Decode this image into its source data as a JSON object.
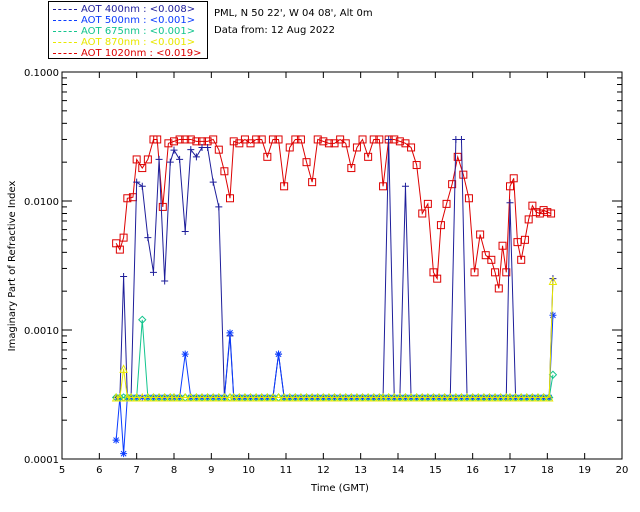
{
  "legend": [
    {
      "label": "AOT  400nm : <0.008>",
      "color": "#1e1e9a"
    },
    {
      "label": "AOT  500nm : <0.001>",
      "color": "#0a3cff"
    },
    {
      "label": "AOT  675nm : <0.001>",
      "color": "#13c58e"
    },
    {
      "label": "AOT  870nm : <0.001>",
      "color": "#e8e800"
    },
    {
      "label": "AOT 1020nm : <0.019>",
      "color": "#dd0000"
    }
  ],
  "info": {
    "site": "PML, N 50 22', W 04 08', Alt 0m",
    "date": "Data from: 12 Aug 2022"
  },
  "chart_data": {
    "type": "line",
    "title": "",
    "xlabel": "Time (GMT)",
    "ylabel": "Imaginary Part of Refractive Index",
    "xlim": [
      5,
      20
    ],
    "ylim": [
      0.0001,
      0.1
    ],
    "yscale": "log",
    "xticks": [
      5,
      6,
      7,
      8,
      9,
      10,
      11,
      12,
      13,
      14,
      15,
      16,
      17,
      18,
      19,
      20
    ],
    "yticks": [
      0.0001,
      0.001,
      0.01,
      0.1
    ],
    "ytick_labels": [
      "0.0001",
      "0.0010",
      "0.0100",
      "0.1000"
    ],
    "series": [
      {
        "name": "AOT 1020nm",
        "color": "#dd0000",
        "marker": "square",
        "x": [
          6.45,
          6.55,
          6.65,
          6.75,
          6.9,
          7.0,
          7.15,
          7.3,
          7.45,
          7.55,
          7.7,
          7.85,
          8.0,
          8.15,
          8.3,
          8.45,
          8.6,
          8.75,
          8.9,
          9.05,
          9.2,
          9.35,
          9.5,
          9.6,
          9.75,
          9.9,
          10.05,
          10.2,
          10.35,
          10.5,
          10.65,
          10.8,
          10.95,
          11.1,
          11.25,
          11.4,
          11.55,
          11.7,
          11.85,
          12.0,
          12.15,
          12.3,
          12.45,
          12.6,
          12.75,
          12.9,
          13.05,
          13.2,
          13.35,
          13.5,
          13.6,
          13.75,
          13.9,
          14.05,
          14.2,
          14.35,
          14.5,
          14.65,
          14.8,
          14.95,
          15.05,
          15.15,
          15.3,
          15.45,
          15.6,
          15.75,
          15.9,
          16.05,
          16.2,
          16.35,
          16.5,
          16.6,
          16.7,
          16.8,
          16.9,
          17.0,
          17.1,
          17.2,
          17.3,
          17.4,
          17.5,
          17.6,
          17.7,
          17.8,
          17.9,
          18.0,
          18.1
        ],
        "y": [
          0.0047,
          0.0042,
          0.0052,
          0.0105,
          0.0107,
          0.021,
          0.018,
          0.021,
          0.03,
          0.03,
          0.009,
          0.028,
          0.029,
          0.03,
          0.03,
          0.03,
          0.029,
          0.029,
          0.029,
          0.03,
          0.025,
          0.017,
          0.0105,
          0.029,
          0.028,
          0.03,
          0.028,
          0.03,
          0.03,
          0.022,
          0.03,
          0.03,
          0.013,
          0.026,
          0.03,
          0.03,
          0.02,
          0.014,
          0.03,
          0.029,
          0.028,
          0.028,
          0.03,
          0.028,
          0.018,
          0.026,
          0.03,
          0.022,
          0.03,
          0.03,
          0.013,
          0.03,
          0.03,
          0.029,
          0.028,
          0.026,
          0.019,
          0.008,
          0.0095,
          0.0028,
          0.0025,
          0.0065,
          0.0095,
          0.0135,
          0.022,
          0.016,
          0.0105,
          0.0028,
          0.0055,
          0.0038,
          0.0035,
          0.0028,
          0.0021,
          0.0045,
          0.0028,
          0.013,
          0.015,
          0.0048,
          0.0035,
          0.005,
          0.0072,
          0.0092,
          0.0082,
          0.008,
          0.0085,
          0.0082,
          0.008
        ]
      },
      {
        "name": "AOT  400nm",
        "color": "#1e1e9a",
        "marker": "plus",
        "x": [
          6.45,
          6.55,
          6.65,
          6.75,
          6.85,
          7.0,
          7.15,
          7.3,
          7.45,
          7.6,
          7.75,
          7.9,
          8.0,
          8.15,
          8.3,
          8.45,
          8.6,
          8.75,
          8.9,
          9.05,
          9.2,
          9.35,
          9.5,
          9.6,
          9.75,
          9.9,
          10.05,
          10.2,
          10.35,
          10.5,
          10.65,
          10.8,
          10.95,
          11.1,
          11.25,
          11.4,
          11.55,
          11.7,
          11.85,
          12.0,
          12.15,
          12.3,
          12.45,
          12.6,
          12.75,
          12.9,
          13.05,
          13.2,
          13.35,
          13.5,
          13.6,
          13.75,
          13.9,
          14.05,
          14.2,
          14.35,
          14.5,
          14.65,
          14.8,
          14.95,
          15.1,
          15.25,
          15.4,
          15.55,
          15.7,
          15.85,
          16.0,
          16.15,
          16.3,
          16.45,
          16.6,
          16.75,
          16.9,
          17.0,
          17.15,
          17.3,
          17.45,
          17.6,
          17.75,
          17.9,
          18.05,
          18.15
        ],
        "y": [
          0.0003,
          0.0003,
          0.0026,
          0.0003,
          0.0003,
          0.014,
          0.013,
          0.0052,
          0.0028,
          0.021,
          0.0024,
          0.02,
          0.0248,
          0.021,
          0.0058,
          0.025,
          0.022,
          0.026,
          0.026,
          0.014,
          0.009,
          0.0003,
          0.0009,
          0.0003,
          0.0003,
          0.0003,
          0.0003,
          0.0003,
          0.0003,
          0.0003,
          0.0003,
          0.00065,
          0.0003,
          0.0003,
          0.0003,
          0.0003,
          0.0003,
          0.0003,
          0.0003,
          0.0003,
          0.0003,
          0.0003,
          0.0003,
          0.0003,
          0.0003,
          0.0003,
          0.0003,
          0.0003,
          0.0003,
          0.0003,
          0.0003,
          0.03,
          0.0003,
          0.0003,
          0.013,
          0.0003,
          0.0003,
          0.0003,
          0.0003,
          0.0003,
          0.0003,
          0.0003,
          0.0003,
          0.03,
          0.03,
          0.0003,
          0.0003,
          0.0003,
          0.0003,
          0.0003,
          0.0003,
          0.0003,
          0.0003,
          0.0097,
          0.0003,
          0.0003,
          0.0003,
          0.0003,
          0.0003,
          0.0003,
          0.0003,
          0.0025
        ]
      },
      {
        "name": "AOT  500nm",
        "color": "#0a3cff",
        "marker": "asterisk",
        "x": [
          6.45,
          6.55,
          6.65,
          6.75,
          6.85,
          7.0,
          7.15,
          7.3,
          7.45,
          7.6,
          7.75,
          7.9,
          8.0,
          8.15,
          8.3,
          8.45,
          8.6,
          8.75,
          8.9,
          9.05,
          9.2,
          9.35,
          9.5,
          9.6,
          9.75,
          9.9,
          10.05,
          10.2,
          10.35,
          10.5,
          10.65,
          10.8,
          10.95,
          11.1,
          11.25,
          11.4,
          11.55,
          11.7,
          11.85,
          12.0,
          12.15,
          12.3,
          12.45,
          12.6,
          12.75,
          12.9,
          13.05,
          13.2,
          13.35,
          13.5,
          13.6,
          13.75,
          13.9,
          14.05,
          14.2,
          14.35,
          14.5,
          14.65,
          14.8,
          14.95,
          15.1,
          15.25,
          15.4,
          15.55,
          15.7,
          15.85,
          16.0,
          16.15,
          16.3,
          16.45,
          16.6,
          16.75,
          16.9,
          17.0,
          17.15,
          17.3,
          17.45,
          17.6,
          17.75,
          17.9,
          18.05,
          18.15
        ],
        "y": [
          0.00014,
          0.0003,
          0.00011,
          0.0003,
          0.0003,
          0.0003,
          0.0003,
          0.0003,
          0.0003,
          0.0003,
          0.0003,
          0.0003,
          0.0003,
          0.0003,
          0.00065,
          0.0003,
          0.0003,
          0.0003,
          0.0003,
          0.0003,
          0.0003,
          0.0003,
          0.00095,
          0.0003,
          0.0003,
          0.0003,
          0.0003,
          0.0003,
          0.0003,
          0.0003,
          0.0003,
          0.00065,
          0.0003,
          0.0003,
          0.0003,
          0.0003,
          0.0003,
          0.0003,
          0.0003,
          0.0003,
          0.0003,
          0.0003,
          0.0003,
          0.0003,
          0.0003,
          0.0003,
          0.0003,
          0.0003,
          0.0003,
          0.0003,
          0.0003,
          0.0003,
          0.0003,
          0.0003,
          0.0003,
          0.0003,
          0.0003,
          0.0003,
          0.0003,
          0.0003,
          0.0003,
          0.0003,
          0.0003,
          0.0003,
          0.0003,
          0.0003,
          0.0003,
          0.0003,
          0.0003,
          0.0003,
          0.0003,
          0.0003,
          0.0003,
          0.0003,
          0.0003,
          0.0003,
          0.0003,
          0.0003,
          0.0003,
          0.0003,
          0.0003,
          0.0013
        ]
      },
      {
        "name": "AOT  675nm",
        "color": "#13c58e",
        "marker": "diamond",
        "x": [
          6.45,
          6.55,
          6.65,
          6.75,
          6.85,
          7.0,
          7.15,
          7.3,
          7.45,
          7.6,
          7.75,
          7.9,
          8.0,
          8.15,
          8.3,
          8.45,
          8.6,
          8.75,
          8.9,
          9.05,
          9.2,
          9.35,
          9.5,
          9.6,
          9.75,
          9.9,
          10.05,
          10.2,
          10.35,
          10.5,
          10.65,
          10.8,
          10.95,
          11.1,
          11.25,
          11.4,
          11.55,
          11.7,
          11.85,
          12.0,
          12.15,
          12.3,
          12.45,
          12.6,
          12.75,
          12.9,
          13.05,
          13.2,
          13.35,
          13.5,
          13.6,
          13.75,
          13.9,
          14.05,
          14.2,
          14.35,
          14.5,
          14.65,
          14.8,
          14.95,
          15.1,
          15.25,
          15.4,
          15.55,
          15.7,
          15.85,
          16.0,
          16.15,
          16.3,
          16.45,
          16.6,
          16.75,
          16.9,
          17.0,
          17.15,
          17.3,
          17.45,
          17.6,
          17.75,
          17.9,
          18.05,
          18.15
        ],
        "y": [
          0.0003,
          0.0003,
          0.0003,
          0.0003,
          0.0003,
          0.0003,
          0.0012,
          0.0003,
          0.0003,
          0.0003,
          0.0003,
          0.0003,
          0.0003,
          0.0003,
          0.0003,
          0.0003,
          0.0003,
          0.0003,
          0.0003,
          0.0003,
          0.0003,
          0.0003,
          0.0003,
          0.0003,
          0.0003,
          0.0003,
          0.0003,
          0.0003,
          0.0003,
          0.0003,
          0.0003,
          0.0003,
          0.0003,
          0.0003,
          0.0003,
          0.0003,
          0.0003,
          0.0003,
          0.0003,
          0.0003,
          0.0003,
          0.0003,
          0.0003,
          0.0003,
          0.0003,
          0.0003,
          0.0003,
          0.0003,
          0.0003,
          0.0003,
          0.0003,
          0.0003,
          0.0003,
          0.0003,
          0.0003,
          0.0003,
          0.0003,
          0.0003,
          0.0003,
          0.0003,
          0.0003,
          0.0003,
          0.0003,
          0.0003,
          0.0003,
          0.0003,
          0.0003,
          0.0003,
          0.0003,
          0.0003,
          0.0003,
          0.0003,
          0.0003,
          0.0003,
          0.0003,
          0.0003,
          0.0003,
          0.0003,
          0.0003,
          0.0003,
          0.0003,
          0.00045
        ]
      },
      {
        "name": "AOT  870nm",
        "color": "#e8e800",
        "marker": "triangle",
        "x": [
          6.45,
          6.55,
          6.65,
          6.75,
          6.85,
          7.0,
          7.15,
          7.3,
          7.45,
          7.6,
          7.75,
          7.9,
          8.0,
          8.15,
          8.3,
          8.45,
          8.6,
          8.75,
          8.9,
          9.05,
          9.2,
          9.35,
          9.5,
          9.6,
          9.75,
          9.9,
          10.05,
          10.2,
          10.35,
          10.5,
          10.65,
          10.8,
          10.95,
          11.1,
          11.25,
          11.4,
          11.55,
          11.7,
          11.85,
          12.0,
          12.15,
          12.3,
          12.45,
          12.6,
          12.75,
          12.9,
          13.05,
          13.2,
          13.35,
          13.5,
          13.6,
          13.75,
          13.9,
          14.05,
          14.2,
          14.35,
          14.5,
          14.65,
          14.8,
          14.95,
          15.1,
          15.25,
          15.4,
          15.55,
          15.7,
          15.85,
          16.0,
          16.15,
          16.3,
          16.45,
          16.6,
          16.75,
          16.9,
          17.0,
          17.15,
          17.3,
          17.45,
          17.6,
          17.75,
          17.9,
          18.05,
          18.15
        ],
        "y": [
          0.0003,
          0.0003,
          0.0005,
          0.0003,
          0.0003,
          0.0003,
          0.0003,
          0.0003,
          0.0003,
          0.0003,
          0.0003,
          0.0003,
          0.0003,
          0.0003,
          0.0003,
          0.0003,
          0.0003,
          0.0003,
          0.0003,
          0.0003,
          0.0003,
          0.0003,
          0.0003,
          0.0003,
          0.0003,
          0.0003,
          0.0003,
          0.0003,
          0.0003,
          0.0003,
          0.0003,
          0.0003,
          0.0003,
          0.0003,
          0.0003,
          0.0003,
          0.0003,
          0.0003,
          0.0003,
          0.0003,
          0.0003,
          0.0003,
          0.0003,
          0.0003,
          0.0003,
          0.0003,
          0.0003,
          0.0003,
          0.0003,
          0.0003,
          0.0003,
          0.0003,
          0.0003,
          0.0003,
          0.0003,
          0.0003,
          0.0003,
          0.0003,
          0.0003,
          0.0003,
          0.0003,
          0.0003,
          0.0003,
          0.0003,
          0.0003,
          0.0003,
          0.0003,
          0.0003,
          0.0003,
          0.0003,
          0.0003,
          0.0003,
          0.0003,
          0.0003,
          0.0003,
          0.0003,
          0.0003,
          0.0003,
          0.0003,
          0.0003,
          0.0003,
          0.0024
        ]
      }
    ]
  }
}
